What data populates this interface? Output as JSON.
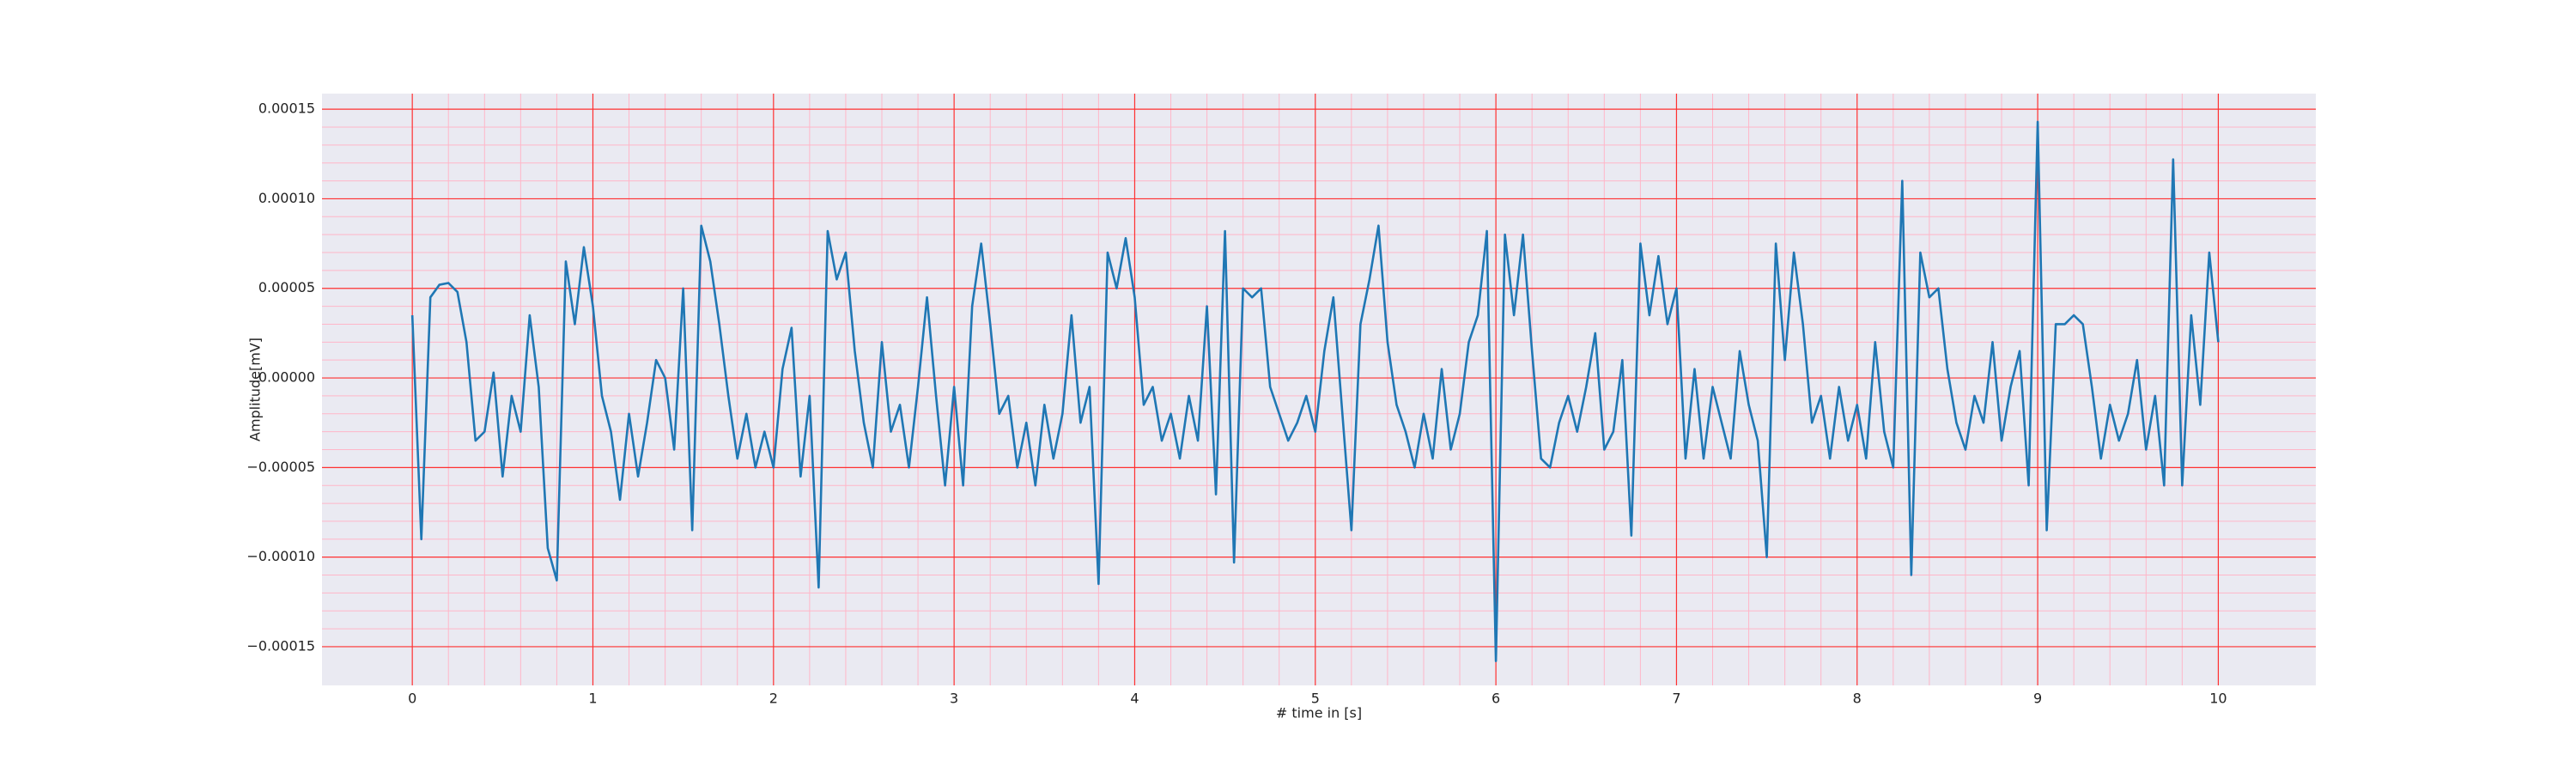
{
  "chart_data": {
    "type": "line",
    "xlabel": "# time in [s]",
    "ylabel": "Amplitude[mV]",
    "xlim": [
      -0.5,
      10.54
    ],
    "ylim": [
      -0.0001716,
      0.0001587
    ],
    "xticks": [
      0,
      1,
      2,
      3,
      4,
      5,
      6,
      7,
      8,
      9,
      10
    ],
    "yticks": [
      {
        "value": -0.00015,
        "label": "−0.00015"
      },
      {
        "value": -0.0001,
        "label": "−0.00010"
      },
      {
        "value": -5e-05,
        "label": "−0.00005"
      },
      {
        "value": 0,
        "label": "0.00000"
      },
      {
        "value": 5e-05,
        "label": "0.00005"
      },
      {
        "value": 0.0001,
        "label": "0.00010"
      },
      {
        "value": 0.00015,
        "label": "0.00015"
      }
    ],
    "grid": true,
    "minor_grid": true,
    "background": "#eaeaf2",
    "grid_color": "#ff3030",
    "minor_grid_color": "#ffb6c8",
    "x": [
      0,
      0.05,
      0.1,
      0.15,
      0.2,
      0.25,
      0.3,
      0.35,
      0.4,
      0.45,
      0.5,
      0.55,
      0.6,
      0.65,
      0.7,
      0.75,
      0.8,
      0.85,
      0.9,
      0.95,
      1,
      1.05,
      1.1,
      1.15,
      1.2,
      1.25,
      1.3,
      1.35,
      1.4,
      1.45,
      1.5,
      1.55,
      1.6,
      1.65,
      1.7,
      1.75,
      1.8,
      1.85,
      1.9,
      1.95,
      2,
      2.05,
      2.1,
      2.15,
      2.2,
      2.25,
      2.3,
      2.35,
      2.4,
      2.45,
      2.5,
      2.55,
      2.6,
      2.65,
      2.7,
      2.75,
      2.8,
      2.85,
      2.9,
      2.95,
      3,
      3.05,
      3.1,
      3.15,
      3.2,
      3.25,
      3.3,
      3.35,
      3.4,
      3.45,
      3.5,
      3.55,
      3.6,
      3.65,
      3.7,
      3.75,
      3.8,
      3.85,
      3.9,
      3.95,
      4,
      4.05,
      4.1,
      4.15,
      4.2,
      4.25,
      4.3,
      4.35,
      4.4,
      4.45,
      4.5,
      4.55,
      4.6,
      4.65,
      4.7,
      4.75,
      4.8,
      4.85,
      4.9,
      4.95,
      5,
      5.05,
      5.1,
      5.15,
      5.2,
      5.25,
      5.3,
      5.35,
      5.4,
      5.45,
      5.5,
      5.55,
      5.6,
      5.65,
      5.7,
      5.75,
      5.8,
      5.85,
      5.9,
      5.95,
      6,
      6.05,
      6.1,
      6.15,
      6.2,
      6.25,
      6.3,
      6.35,
      6.4,
      6.45,
      6.5,
      6.55,
      6.6,
      6.65,
      6.7,
      6.75,
      6.8,
      6.85,
      6.9,
      6.95,
      7,
      7.05,
      7.1,
      7.15,
      7.2,
      7.25,
      7.3,
      7.35,
      7.4,
      7.45,
      7.5,
      7.55,
      7.6,
      7.65,
      7.7,
      7.75,
      7.8,
      7.85,
      7.9,
      7.95,
      8,
      8.05,
      8.1,
      8.15,
      8.2,
      8.25,
      8.3,
      8.35,
      8.4,
      8.45,
      8.5,
      8.55,
      8.6,
      8.65,
      8.7,
      8.75,
      8.8,
      8.85,
      8.9,
      8.95,
      9,
      9.05,
      9.1,
      9.15,
      9.2,
      9.25,
      9.3,
      9.35,
      9.4,
      9.45,
      9.5,
      9.55,
      9.6,
      9.65,
      9.7,
      9.75,
      9.8,
      9.85,
      9.9,
      9.95,
      10
    ],
    "series": [
      {
        "color": "#1f77b4",
        "values": [
          3.5e-05,
          -9e-05,
          4.5e-05,
          5.2e-05,
          5.3e-05,
          4.8e-05,
          2e-05,
          -3.5e-05,
          -3e-05,
          3e-06,
          -5.5e-05,
          -1e-05,
          -3e-05,
          3.5e-05,
          -5e-06,
          -9.5e-05,
          -0.000113,
          6.5e-05,
          3e-05,
          7.3e-05,
          4e-05,
          -1e-05,
          -3e-05,
          -6.8e-05,
          -2e-05,
          -5.5e-05,
          -2.5e-05,
          1e-05,
          0,
          -4e-05,
          5e-05,
          -8.5e-05,
          8.5e-05,
          6.5e-05,
          3e-05,
          -1e-05,
          -4.5e-05,
          -2e-05,
          -5e-05,
          -3e-05,
          -5e-05,
          5e-06,
          2.8e-05,
          -5.5e-05,
          -1e-05,
          -0.000117,
          8.2e-05,
          5.5e-05,
          7e-05,
          1.5e-05,
          -2.5e-05,
          -5e-05,
          2e-05,
          -3e-05,
          -1.5e-05,
          -5e-05,
          -5e-06,
          4.5e-05,
          -1e-05,
          -6e-05,
          -5e-06,
          -6e-05,
          4e-05,
          7.5e-05,
          3e-05,
          -2e-05,
          -1e-05,
          -5e-05,
          -2.5e-05,
          -6e-05,
          -1.5e-05,
          -4.5e-05,
          -2e-05,
          3.5e-05,
          -2.5e-05,
          -5e-06,
          -0.000115,
          7e-05,
          5e-05,
          7.8e-05,
          4.5e-05,
          -1.5e-05,
          -5e-06,
          -3.5e-05,
          -2e-05,
          -4.5e-05,
          -1e-05,
          -3.5e-05,
          4e-05,
          -6.5e-05,
          8.2e-05,
          -0.000103,
          5e-05,
          4.5e-05,
          5e-05,
          -5e-06,
          -2e-05,
          -3.5e-05,
          -2.5e-05,
          -1e-05,
          -3e-05,
          1.5e-05,
          4.5e-05,
          -2e-05,
          -8.5e-05,
          3e-05,
          5.5e-05,
          8.5e-05,
          2e-05,
          -1.5e-05,
          -3e-05,
          -5e-05,
          -2e-05,
          -4.5e-05,
          5e-06,
          -4e-05,
          -2e-05,
          2e-05,
          3.5e-05,
          8.2e-05,
          -0.000158,
          8e-05,
          3.5e-05,
          8e-05,
          1.5e-05,
          -4.5e-05,
          -5e-05,
          -2.5e-05,
          -1e-05,
          -3e-05,
          -5e-06,
          2.5e-05,
          -4e-05,
          -3e-05,
          1e-05,
          -8.8e-05,
          7.5e-05,
          3.5e-05,
          6.8e-05,
          3e-05,
          5e-05,
          -4.5e-05,
          5e-06,
          -4.5e-05,
          -5e-06,
          -2.5e-05,
          -4.5e-05,
          1.5e-05,
          -1.5e-05,
          -3.5e-05,
          -0.0001,
          7.5e-05,
          1e-05,
          7e-05,
          3e-05,
          -2.5e-05,
          -1e-05,
          -4.5e-05,
          -5e-06,
          -3.5e-05,
          -1.5e-05,
          -4.5e-05,
          2e-05,
          -3e-05,
          -5e-05,
          0.00011,
          -0.00011,
          7e-05,
          4.5e-05,
          5e-05,
          5e-06,
          -2.5e-05,
          -4e-05,
          -1e-05,
          -2.5e-05,
          2e-05,
          -3.5e-05,
          -5e-06,
          1.5e-05,
          -6e-05,
          0.000143,
          -8.5e-05,
          3e-05,
          3e-05,
          3.5e-05,
          3e-05,
          -5e-06,
          -4.5e-05,
          -1.5e-05,
          -3.5e-05,
          -2e-05,
          1e-05,
          -4e-05,
          -1e-05,
          -6e-05,
          0.000122,
          -6e-05,
          3.5e-05,
          -1.5e-05,
          7e-05,
          2e-05
        ]
      }
    ]
  }
}
